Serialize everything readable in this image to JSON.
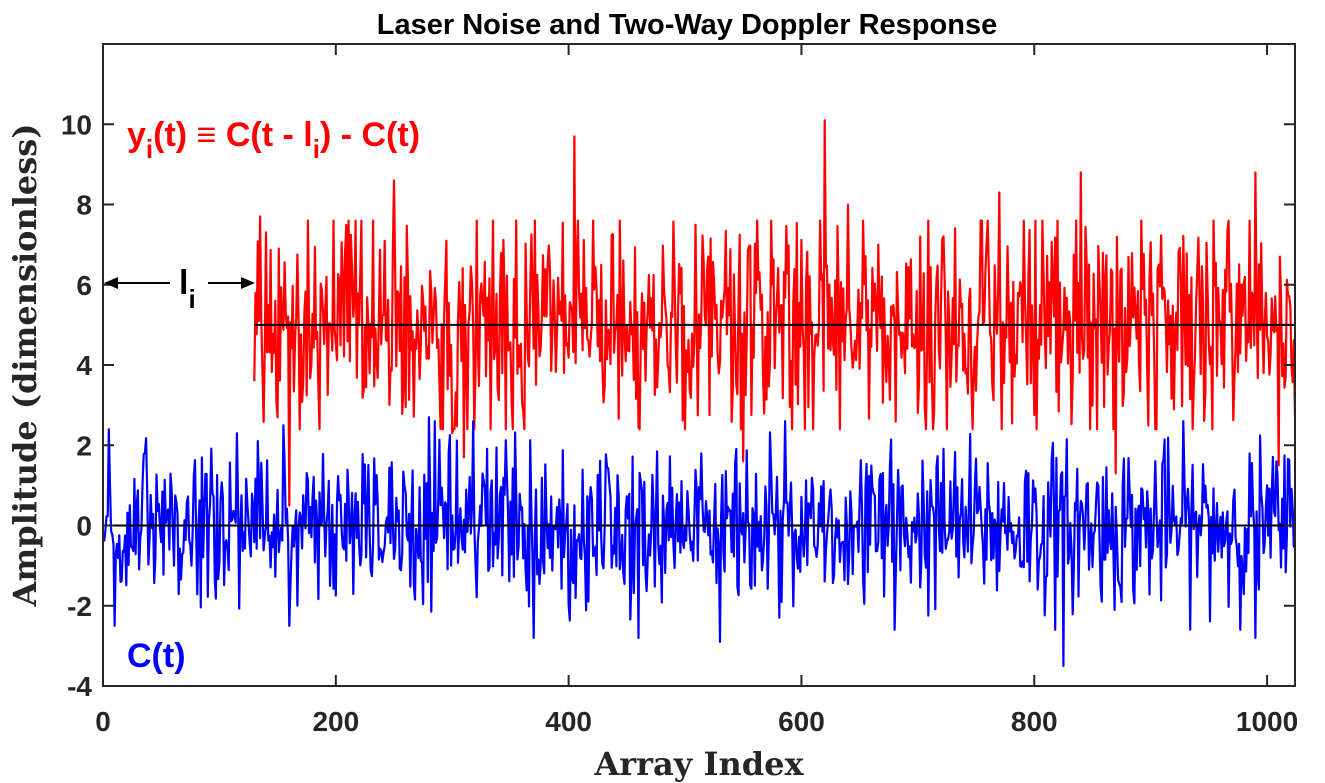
{
  "chart_data": {
    "type": "line",
    "title": "Laser Noise and Two-Way Doppler Response",
    "xlabel": "Array Index",
    "ylabel": "Amplitude (dimensionless)",
    "xlim": [
      0,
      1024
    ],
    "ylim": [
      -4,
      12
    ],
    "x_ticks": [
      0,
      200,
      400,
      600,
      800,
      1000
    ],
    "y_ticks": [
      -4,
      -2,
      0,
      2,
      4,
      6,
      8,
      10
    ],
    "x_tick_labels": [
      "0",
      "200",
      "400",
      "600",
      "800",
      "1000"
    ],
    "y_tick_labels": [
      "-4",
      "-2",
      "0",
      "2",
      "4",
      "6",
      "8",
      "10"
    ],
    "grid": false,
    "reference_lines": [
      0,
      5
    ],
    "series": [
      {
        "name": "y_i(t) ≡ C(t - l_i) - C(t)",
        "color": "#ff0000",
        "start_index": 130,
        "offset": 5,
        "noise_std": 1.4,
        "x": [
          130,
          135,
          160,
          250,
          300,
          310,
          405,
          550,
          620,
          640,
          770,
          840,
          870,
          990,
          1010,
          1024
        ],
        "values": [
          3.6,
          7.7,
          0.5,
          8.6,
          2.3,
          1.7,
          9.7,
          1.6,
          10.1,
          8.0,
          8.3,
          8.8,
          1.3,
          8.8,
          1.5,
          2.7
        ]
      },
      {
        "name": "C(t)",
        "color": "#0000ff",
        "start_index": 1,
        "offset": 0,
        "noise_std": 1.0,
        "x": [
          1,
          5,
          10,
          115,
          155,
          160,
          280,
          370,
          460,
          530,
          680,
          825,
          990,
          1024
        ],
        "values": [
          -0.4,
          2.4,
          -2.5,
          2.3,
          2.5,
          -2.5,
          2.7,
          -2.8,
          -2.8,
          -2.9,
          -2.6,
          -3.5,
          -2.8,
          -0.4
        ]
      }
    ],
    "annotations": {
      "delay_label": "l",
      "delay_sub": "i",
      "delay_y": 6.05,
      "delay_end_index": 130,
      "red_label_y": "y",
      "red_label_sub_i": "i",
      "red_label_mid": "(t) ≡ C(t - l",
      "red_label_end": ") - C(t)",
      "blue_label": "C(t)"
    }
  }
}
